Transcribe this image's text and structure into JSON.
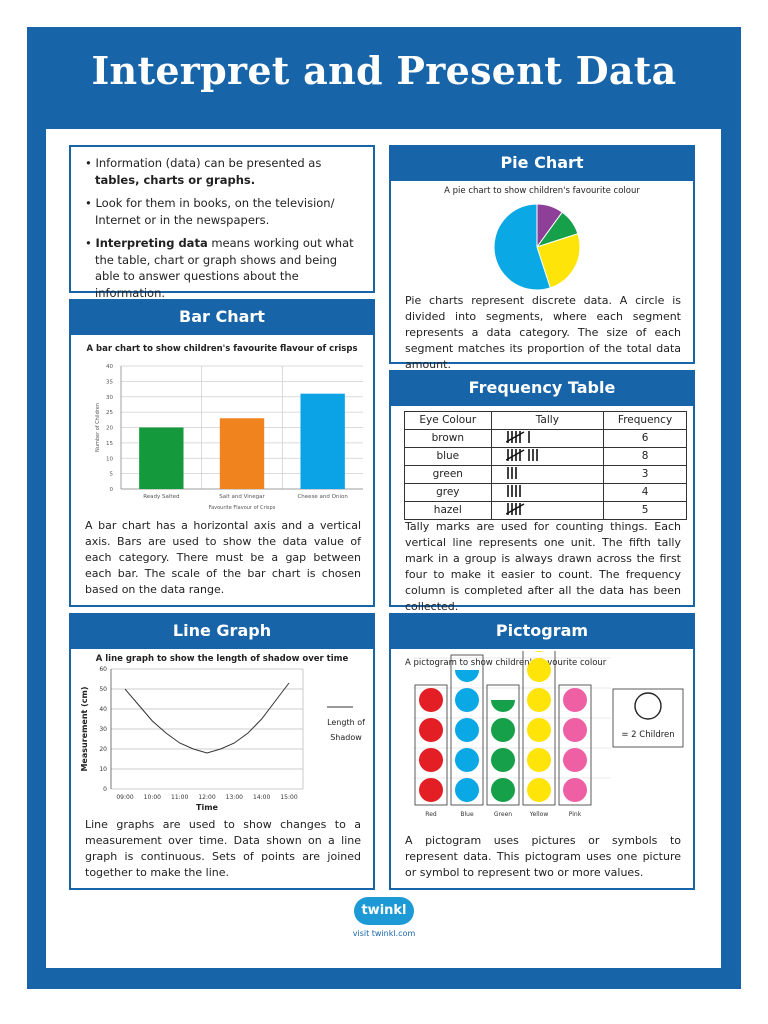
{
  "title": "Interpret and Present Data",
  "intro": {
    "point1_a": "Information (data) can be presented as ",
    "point1_b": "tables, charts or graphs.",
    "point2": "Look for them in books, on the television/ Internet or in the newspapers.",
    "point3_a": "Interpreting data",
    "point3_b": " means working out what the table, chart or graph shows and being able to answer questions about the information."
  },
  "bar_chart": {
    "heading": "Bar Chart",
    "text": "A bar chart has a horizontal axis and a vertical axis. Bars are used to show the data value of each category. There must be a gap between each bar. The scale of the bar chart is chosen based on the data range.",
    "chart_data": {
      "type": "bar",
      "title": "A bar chart to show children's favourite flavour of crisps",
      "xlabel": "Favourite Flavour of Crisps",
      "ylabel": "Number of Children",
      "categories": [
        "Ready Salted",
        "Salt and Vinegar",
        "Cheese and Onion"
      ],
      "values": [
        20,
        23,
        31
      ],
      "colors": [
        "#149a3c",
        "#f0831e",
        "#0ba3e6"
      ],
      "ylim": [
        0,
        40
      ],
      "yticks": [
        "0",
        "5",
        "10",
        "15",
        "20",
        "25",
        "30",
        "35",
        "40"
      ],
      "grid": true
    }
  },
  "line_graph": {
    "heading": "Line Graph",
    "text": "Line graphs are used to show changes to a measurement over time. Data shown on a line graph is continuous. Sets of points are joined together to make the line.",
    "legend_label": "Length of Shadow",
    "chart_data": {
      "type": "line",
      "title": "A line graph to show the length of shadow over time",
      "xlabel": "Time",
      "ylabel": "Measurement (cm)",
      "categories": [
        "09:00",
        "10:00",
        "11:00",
        "12:00",
        "13:00",
        "14:00",
        "15:00"
      ],
      "x": [
        0,
        1,
        2,
        3,
        4,
        5,
        6
      ],
      "series": [
        {
          "name": "Length of Shadow",
          "values": [
            50,
            34,
            23,
            18,
            23,
            35,
            53
          ]
        }
      ],
      "x_points": [
        0,
        0.5,
        1,
        1.5,
        2,
        2.5,
        3,
        3.5,
        4,
        4.5,
        5,
        5.5,
        6
      ],
      "y_points": [
        50,
        42,
        34,
        28,
        23,
        20,
        18,
        20,
        23,
        28,
        35,
        44,
        53
      ],
      "ylim": [
        0,
        60
      ],
      "yticks": [
        "0",
        "10",
        "20",
        "30",
        "40",
        "50",
        "60"
      ],
      "grid": true
    }
  },
  "pie_chart": {
    "heading": "Pie Chart",
    "text": "Pie charts represent discrete data. A circle is divided into segments, where each segment represents a data category. The size of each segment matches its proportion of the total data amount.",
    "chart_data": {
      "type": "pie",
      "title": "A pie chart to show children's favourite colour",
      "categories": [
        "Purple",
        "Green",
        "Yellow",
        "Blue"
      ],
      "values": [
        10,
        10,
        25,
        55
      ],
      "colors": [
        "#8e3f98",
        "#16a04a",
        "#ffe40a",
        "#0ba8e6"
      ]
    }
  },
  "frequency_table": {
    "heading": "Frequency Table",
    "columns": [
      "Eye Colour",
      "Tally",
      "Frequency"
    ],
    "rows": [
      {
        "colour": "brown",
        "tally": 6,
        "frequency": "6"
      },
      {
        "colour": "blue",
        "tally": 8,
        "frequency": "8"
      },
      {
        "colour": "green",
        "tally": 3,
        "frequency": "3"
      },
      {
        "colour": "grey",
        "tally": 4,
        "frequency": "4"
      },
      {
        "colour": "hazel",
        "tally": 5,
        "frequency": "5"
      }
    ],
    "text": "Tally marks are used for counting things. Each vertical line represents one unit. The fifth tally mark in a group is always drawn across the first four to make it easier to count. The frequency column is completed after all the data has been collected."
  },
  "pictogram": {
    "heading": "Pictogram",
    "title": "A pictogram to show children's favourite colour",
    "categories": [
      "Red",
      "Blue",
      "Green",
      "Yellow",
      "Pink"
    ],
    "symbols": [
      4,
      4.5,
      3.5,
      5.5,
      4
    ],
    "colors": [
      "#e31e24",
      "#0ba8e6",
      "#16a04a",
      "#ffe40a",
      "#ee5fa3"
    ],
    "key_label": "= 2 Children",
    "text": "A pictogram uses pictures or symbols to represent data. This pictogram uses one picture or symbol to represent two or more values."
  },
  "footer": {
    "brand": "twinkl",
    "url": "visit twinkl.com",
    "brand_color": "#1d9ad6"
  }
}
